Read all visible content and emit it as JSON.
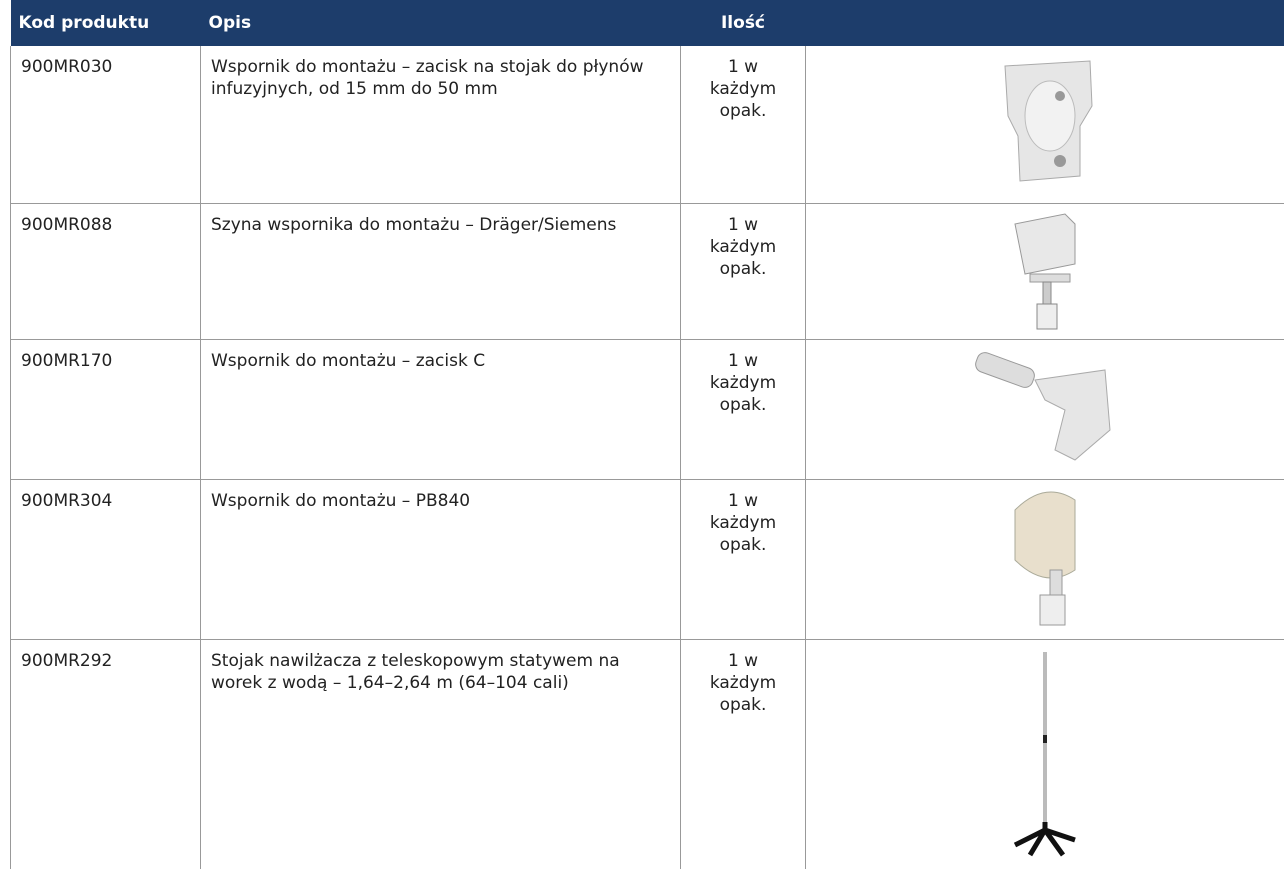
{
  "table": {
    "columns": [
      "Kod produktu",
      "Opis",
      "Ilość"
    ],
    "rows": [
      [
        "900MR030",
        "Wspornik do montażu – zacisk na stojak do płynów infuzyjnych, od 15 mm do 50 mm",
        "1 w każdym opak."
      ],
      [
        "900MR088",
        "Szyna wspornika do montażu – Dräger/Siemens",
        "1 w każdym opak."
      ],
      [
        "900MR170",
        "Wspornik do montażu – zacisk C",
        "1 w każdym opak."
      ],
      [
        "900MR304",
        "Wspornik do montażu – PB840",
        "1 w każdym opak."
      ],
      [
        "900MR292",
        "Stojak nawilżacza z teleskopowym statywem na worek z wodą – 1,64–2,64 m (64–104 cali)",
        "1 w każdym opak."
      ]
    ]
  }
}
